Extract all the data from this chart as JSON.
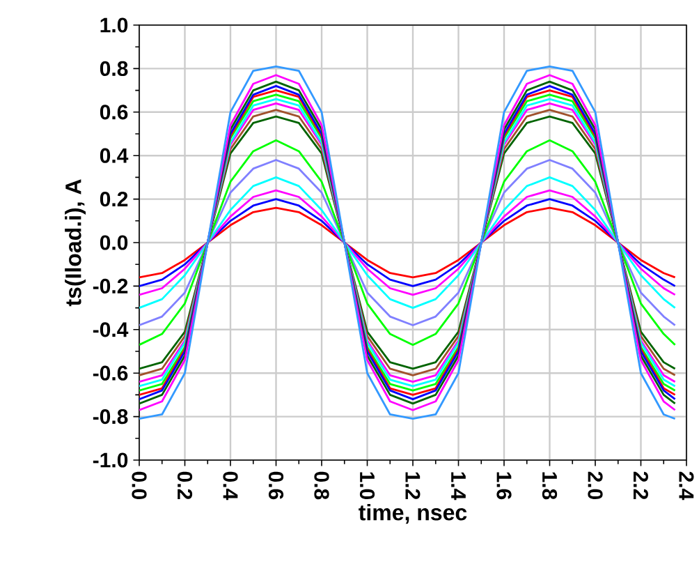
{
  "chart_data": {
    "type": "line",
    "xlabel": "time, nsec",
    "ylabel": "ts(Iload.i), A",
    "x": [
      0,
      0.1,
      0.2,
      0.3,
      0.4,
      0.5,
      0.6,
      0.7,
      0.8,
      0.9,
      1.0,
      1.1,
      1.2,
      1.3,
      1.4,
      1.5,
      1.6,
      1.7,
      1.8,
      1.9,
      2.0,
      2.1,
      2.2,
      2.3,
      2.35
    ],
    "xlim": [
      0,
      2.4
    ],
    "xticks": [
      {
        "value": 0,
        "label": "0.0"
      },
      {
        "value": 0.2,
        "label": "0.2"
      },
      {
        "value": 0.4,
        "label": "0.4"
      },
      {
        "value": 0.6,
        "label": "0.6"
      },
      {
        "value": 0.8,
        "label": "0.8"
      },
      {
        "value": 1.0,
        "label": "1.0"
      },
      {
        "value": 1.2,
        "label": "1.2"
      },
      {
        "value": 1.4,
        "label": "1.4"
      },
      {
        "value": 1.6,
        "label": "1.6"
      },
      {
        "value": 1.8,
        "label": "1.8"
      },
      {
        "value": 2.0,
        "label": "2.0"
      },
      {
        "value": 2.2,
        "label": "2.2"
      },
      {
        "value": 2.4,
        "label": "2.4"
      }
    ],
    "ylim": [
      -1,
      1
    ],
    "yticks": [
      {
        "value": -1,
        "label": "-1.0"
      },
      {
        "value": -0.8,
        "label": "-0.8"
      },
      {
        "value": -0.6,
        "label": "-0.6"
      },
      {
        "value": -0.4,
        "label": "-0.4"
      },
      {
        "value": -0.2,
        "label": "-0.2"
      },
      {
        "value": 0,
        "label": "0.0"
      },
      {
        "value": 0.2,
        "label": "0.2"
      },
      {
        "value": 0.4,
        "label": "0.4"
      },
      {
        "value": 0.6,
        "label": "0.6"
      },
      {
        "value": 0.8,
        "label": "0.8"
      },
      {
        "value": 1,
        "label": "1.0"
      }
    ],
    "grid": true,
    "marker": "none",
    "line_style": "solid",
    "series": [
      {
        "color": "#ff0000",
        "values": [
          -0.16,
          -0.14,
          -0.08,
          0,
          0.08,
          0.14,
          0.16,
          0.14,
          0.08,
          0,
          -0.08,
          -0.14,
          -0.16,
          -0.14,
          -0.08,
          0,
          0.08,
          0.14,
          0.16,
          0.14,
          0.08,
          0,
          -0.08,
          -0.14,
          -0.16
        ]
      },
      {
        "color": "#0000ff",
        "values": [
          -0.2,
          -0.17,
          -0.1,
          0,
          0.1,
          0.17,
          0.2,
          0.17,
          0.1,
          0,
          -0.1,
          -0.17,
          -0.2,
          -0.17,
          -0.1,
          0,
          0.1,
          0.17,
          0.2,
          0.17,
          0.1,
          0,
          -0.1,
          -0.17,
          -0.2
        ]
      },
      {
        "color": "#ff00ff",
        "values": [
          -0.24,
          -0.21,
          -0.12,
          0,
          0.12,
          0.21,
          0.24,
          0.21,
          0.12,
          0,
          -0.12,
          -0.21,
          -0.24,
          -0.21,
          -0.12,
          0,
          0.12,
          0.21,
          0.24,
          0.21,
          0.12,
          0,
          -0.12,
          -0.21,
          -0.24
        ]
      },
      {
        "color": "#00ffff",
        "values": [
          -0.3,
          -0.26,
          -0.15,
          0,
          0.15,
          0.26,
          0.3,
          0.26,
          0.15,
          0,
          -0.15,
          -0.26,
          -0.3,
          -0.26,
          -0.15,
          0,
          0.15,
          0.26,
          0.3,
          0.26,
          0.15,
          0,
          -0.15,
          -0.26,
          -0.3
        ]
      },
      {
        "color": "#8080ff",
        "values": [
          -0.38,
          -0.34,
          -0.23,
          0,
          0.23,
          0.34,
          0.38,
          0.34,
          0.23,
          0,
          -0.23,
          -0.34,
          -0.38,
          -0.34,
          -0.23,
          0,
          0.23,
          0.34,
          0.38,
          0.34,
          0.23,
          0,
          -0.23,
          -0.34,
          -0.38
        ]
      },
      {
        "color": "#00ff00",
        "values": [
          -0.47,
          -0.42,
          -0.28,
          0,
          0.28,
          0.42,
          0.47,
          0.42,
          0.28,
          0,
          -0.28,
          -0.42,
          -0.47,
          -0.42,
          -0.28,
          0,
          0.28,
          0.42,
          0.47,
          0.42,
          0.28,
          0,
          -0.28,
          -0.42,
          -0.47
        ]
      },
      {
        "color": "#006400",
        "values": [
          -0.58,
          -0.55,
          -0.41,
          0,
          0.41,
          0.55,
          0.58,
          0.55,
          0.41,
          0,
          -0.41,
          -0.55,
          -0.58,
          -0.55,
          -0.41,
          0,
          0.41,
          0.55,
          0.58,
          0.55,
          0.41,
          0,
          -0.41,
          -0.55,
          -0.58
        ]
      },
      {
        "color": "#a0522d",
        "values": [
          -0.61,
          -0.58,
          -0.43,
          0,
          0.43,
          0.58,
          0.61,
          0.58,
          0.43,
          0,
          -0.43,
          -0.58,
          -0.61,
          -0.58,
          -0.43,
          0,
          0.43,
          0.58,
          0.61,
          0.58,
          0.43,
          0,
          -0.43,
          -0.58,
          -0.61
        ]
      },
      {
        "color": "#ff00ff",
        "values": [
          -0.64,
          -0.61,
          -0.45,
          0,
          0.45,
          0.61,
          0.64,
          0.61,
          0.45,
          0,
          -0.45,
          -0.61,
          -0.64,
          -0.61,
          -0.45,
          0,
          0.45,
          0.61,
          0.64,
          0.61,
          0.45,
          0,
          -0.45,
          -0.61,
          -0.64
        ]
      },
      {
        "color": "#00ffff",
        "values": [
          -0.66,
          -0.63,
          -0.46,
          0,
          0.46,
          0.63,
          0.66,
          0.63,
          0.46,
          0,
          -0.46,
          -0.63,
          -0.66,
          -0.63,
          -0.46,
          0,
          0.46,
          0.63,
          0.66,
          0.63,
          0.46,
          0,
          -0.46,
          -0.63,
          -0.66
        ]
      },
      {
        "color": "#00ff00",
        "values": [
          -0.68,
          -0.65,
          -0.48,
          0,
          0.48,
          0.65,
          0.68,
          0.65,
          0.48,
          0,
          -0.48,
          -0.65,
          -0.68,
          -0.65,
          -0.48,
          0,
          0.48,
          0.65,
          0.68,
          0.65,
          0.48,
          0,
          -0.48,
          -0.65,
          -0.68
        ]
      },
      {
        "color": "#ff0000",
        "values": [
          -0.7,
          -0.67,
          -0.49,
          0,
          0.49,
          0.67,
          0.7,
          0.67,
          0.49,
          0,
          -0.49,
          -0.67,
          -0.7,
          -0.67,
          -0.49,
          0,
          0.49,
          0.67,
          0.7,
          0.67,
          0.49,
          0,
          -0.49,
          -0.67,
          -0.7
        ]
      },
      {
        "color": "#0000ff",
        "values": [
          -0.72,
          -0.68,
          -0.5,
          0,
          0.5,
          0.68,
          0.72,
          0.68,
          0.5,
          0,
          -0.5,
          -0.68,
          -0.72,
          -0.68,
          -0.5,
          0,
          0.5,
          0.68,
          0.72,
          0.68,
          0.5,
          0,
          -0.5,
          -0.68,
          -0.72
        ]
      },
      {
        "color": "#006400",
        "values": [
          -0.74,
          -0.7,
          -0.52,
          0,
          0.52,
          0.7,
          0.74,
          0.7,
          0.52,
          0,
          -0.52,
          -0.7,
          -0.74,
          -0.7,
          -0.52,
          0,
          0.52,
          0.7,
          0.74,
          0.7,
          0.52,
          0,
          -0.52,
          -0.7,
          -0.74
        ]
      },
      {
        "color": "#ff00ff",
        "values": [
          -0.77,
          -0.73,
          -0.54,
          0,
          0.54,
          0.73,
          0.77,
          0.73,
          0.54,
          0,
          -0.54,
          -0.73,
          -0.77,
          -0.73,
          -0.54,
          0,
          0.54,
          0.73,
          0.77,
          0.73,
          0.54,
          0,
          -0.54,
          -0.73,
          -0.77
        ]
      },
      {
        "color": "#3399ff",
        "values": [
          -0.81,
          -0.79,
          -0.6,
          0,
          0.6,
          0.79,
          0.81,
          0.79,
          0.6,
          0,
          -0.6,
          -0.79,
          -0.81,
          -0.79,
          -0.6,
          0,
          0.6,
          0.79,
          0.81,
          0.79,
          0.6,
          0,
          -0.6,
          -0.79,
          -0.81
        ]
      }
    ]
  }
}
